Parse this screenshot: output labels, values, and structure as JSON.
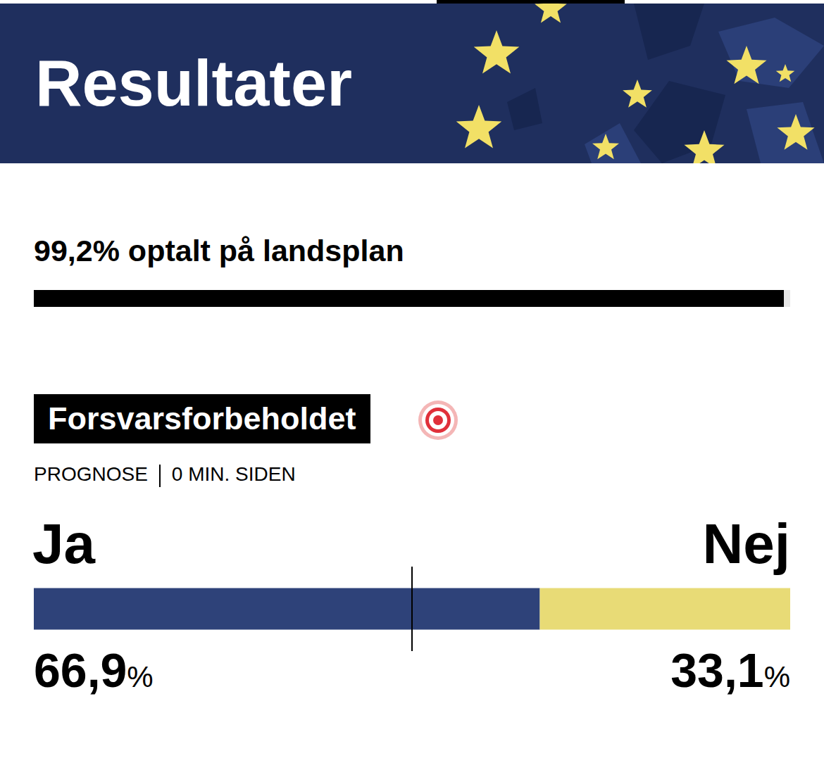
{
  "header": {
    "title": "Resultater"
  },
  "progress": {
    "label": "99,2% optalt på landsplan",
    "value": 99.2,
    "max": 100
  },
  "chart_data": {
    "type": "bar",
    "orientation": "horizontal",
    "stacked": true,
    "title": "Forsvarsforbeholdet",
    "subtitle": [
      "PROGNOSE",
      "0 MIN. SIDEN"
    ],
    "categories": [
      null
    ],
    "series": [
      {
        "name": "Ja",
        "color": "#2e4279",
        "values": [
          66.9
        ],
        "value_labels": [
          "66,9%"
        ]
      },
      {
        "name": "Nej",
        "color": "#e8db76",
        "values": [
          33.1
        ],
        "value_labels": [
          "33,1%"
        ]
      }
    ],
    "xlim": [
      0,
      100
    ],
    "reference_line": 50,
    "tick_labels": false,
    "data_labels": true
  }
}
